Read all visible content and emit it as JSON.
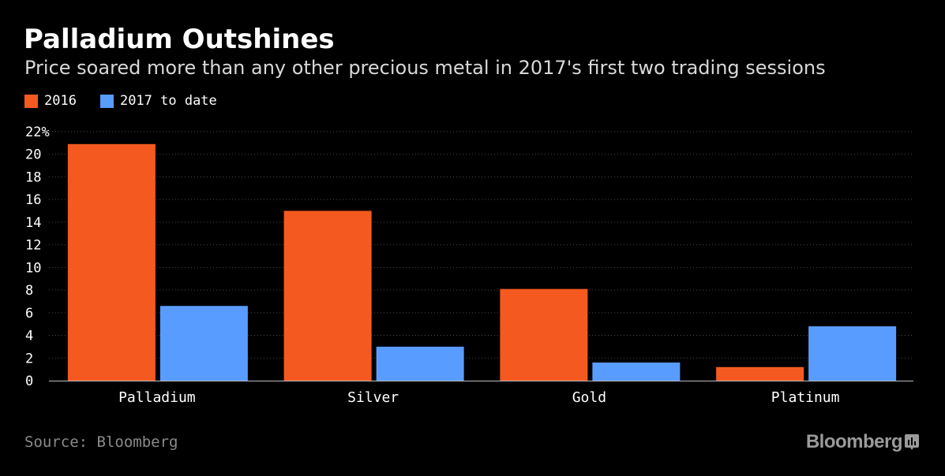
{
  "header": {
    "title": "Palladium Outshines",
    "subtitle": "Price soared more than any other precious metal in 2017's first two trading sessions"
  },
  "colors": {
    "background": "#000000",
    "series_2016": "#f45a20",
    "series_2017": "#599cff",
    "grid": "#4a4a4a",
    "axis_text": "#ffffff"
  },
  "chart_data": {
    "type": "bar",
    "title": "Palladium Outshines",
    "subtitle": "Price soared more than any other precious metal in 2017's first two trading sessions",
    "categories": [
      "Palladium",
      "Silver",
      "Gold",
      "Platinum"
    ],
    "series": [
      {
        "name": "2016",
        "color": "#f45a20",
        "values": [
          20.9,
          15.0,
          8.1,
          1.2
        ]
      },
      {
        "name": "2017 to date",
        "color": "#599cff",
        "values": [
          6.6,
          3.0,
          1.6,
          4.8
        ]
      }
    ],
    "ylim": [
      0,
      22
    ],
    "yticks": [
      0,
      2,
      4,
      6,
      8,
      10,
      12,
      14,
      16,
      18,
      20,
      22
    ],
    "ytick_labels": [
      "0",
      "2",
      "4",
      "6",
      "8",
      "10",
      "12",
      "14",
      "16",
      "18",
      "20",
      "22%"
    ],
    "xlabel": "",
    "ylabel": "",
    "grid": true,
    "legend_position": "top-left"
  },
  "footer": {
    "source": "Source: Bloomberg",
    "brand": "Bloomberg",
    "brand_icon": "bloomberg-tag-icon"
  }
}
